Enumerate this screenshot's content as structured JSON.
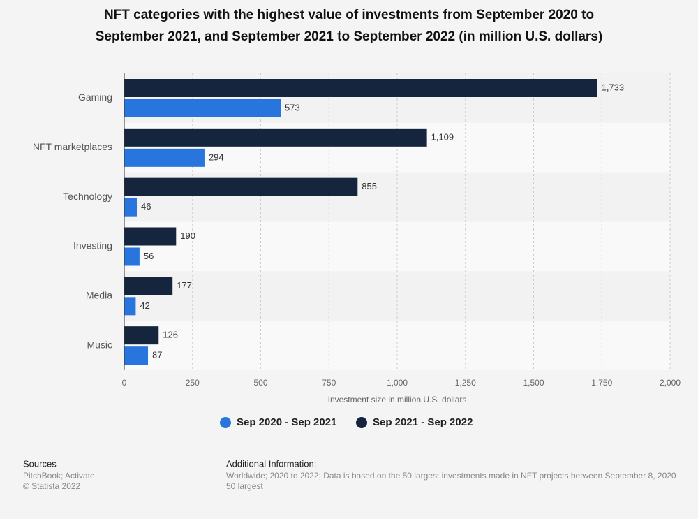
{
  "chart_data": {
    "type": "bar",
    "orientation": "horizontal",
    "title": [
      "NFT categories with the highest value of investments from September 2020 to",
      "September 2021, and September 2021 to September 2022 (in million U.S. dollars)"
    ],
    "categories": [
      "Gaming",
      "NFT marketplaces",
      "Technology",
      "Investing",
      "Media",
      "Music"
    ],
    "series": [
      {
        "name": "Sep 2020 - Sep 2021",
        "color": "#2876dd",
        "values": [
          573,
          294,
          46,
          56,
          42,
          87
        ]
      },
      {
        "name": "Sep 2021 - Sep 2022",
        "color": "#14253d",
        "values": [
          1733,
          1109,
          855,
          190,
          177,
          126
        ],
        "value_labels": [
          "1,733",
          "1,109",
          "855",
          "190",
          "177",
          "126"
        ]
      }
    ],
    "xlabel": "Investment size in million U.S. dollars",
    "xlim": [
      0,
      2000
    ],
    "xticks": [
      0,
      250,
      500,
      750,
      {
        "value": 1000,
        "label": "1,000"
      },
      {
        "value": 1250,
        "label": "1,250"
      },
      {
        "value": 1500,
        "label": "1,500"
      },
      {
        "value": 1750,
        "label": "1,750"
      },
      {
        "value": 2000,
        "label": "2,000"
      }
    ],
    "grid": true,
    "legend": "bottom"
  },
  "footer": {
    "sources_title": "Sources",
    "sources": [
      "PitchBook; Activate",
      "© Statista 2022"
    ],
    "info_title": "Additional Information:",
    "info": [
      "Worldwide; 2020 to 2022; Data is based on the 50 largest investments made in NFT projects between September 8, 2020",
      "50 largest"
    ]
  }
}
